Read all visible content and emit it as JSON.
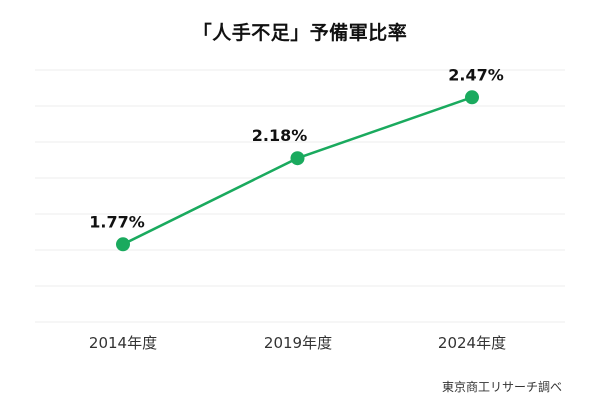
{
  "title": "「人手不足」予備軍比率",
  "source": "東京商工リサーチ調べ",
  "chart_data": {
    "type": "line",
    "title": "「人手不足」予備軍比率",
    "categories": [
      "2014年度",
      "2019年度",
      "2024年度"
    ],
    "values": [
      1.77,
      2.18,
      2.47
    ],
    "value_labels": [
      "1.77%",
      "2.18%",
      "2.47%"
    ],
    "xlabel": "",
    "ylabel": "",
    "ylim": [
      1.4,
      2.6
    ],
    "grid": true,
    "gridline_count": 8,
    "legend": "none",
    "line_color": "#1aaa5e",
    "gridline_color": "#ececec",
    "source": "東京商工リサーチ調べ"
  },
  "colors": {
    "accent_green": "#1aaa5e",
    "grid": "#ececec",
    "text": "#111111",
    "background": "#ffffff"
  }
}
